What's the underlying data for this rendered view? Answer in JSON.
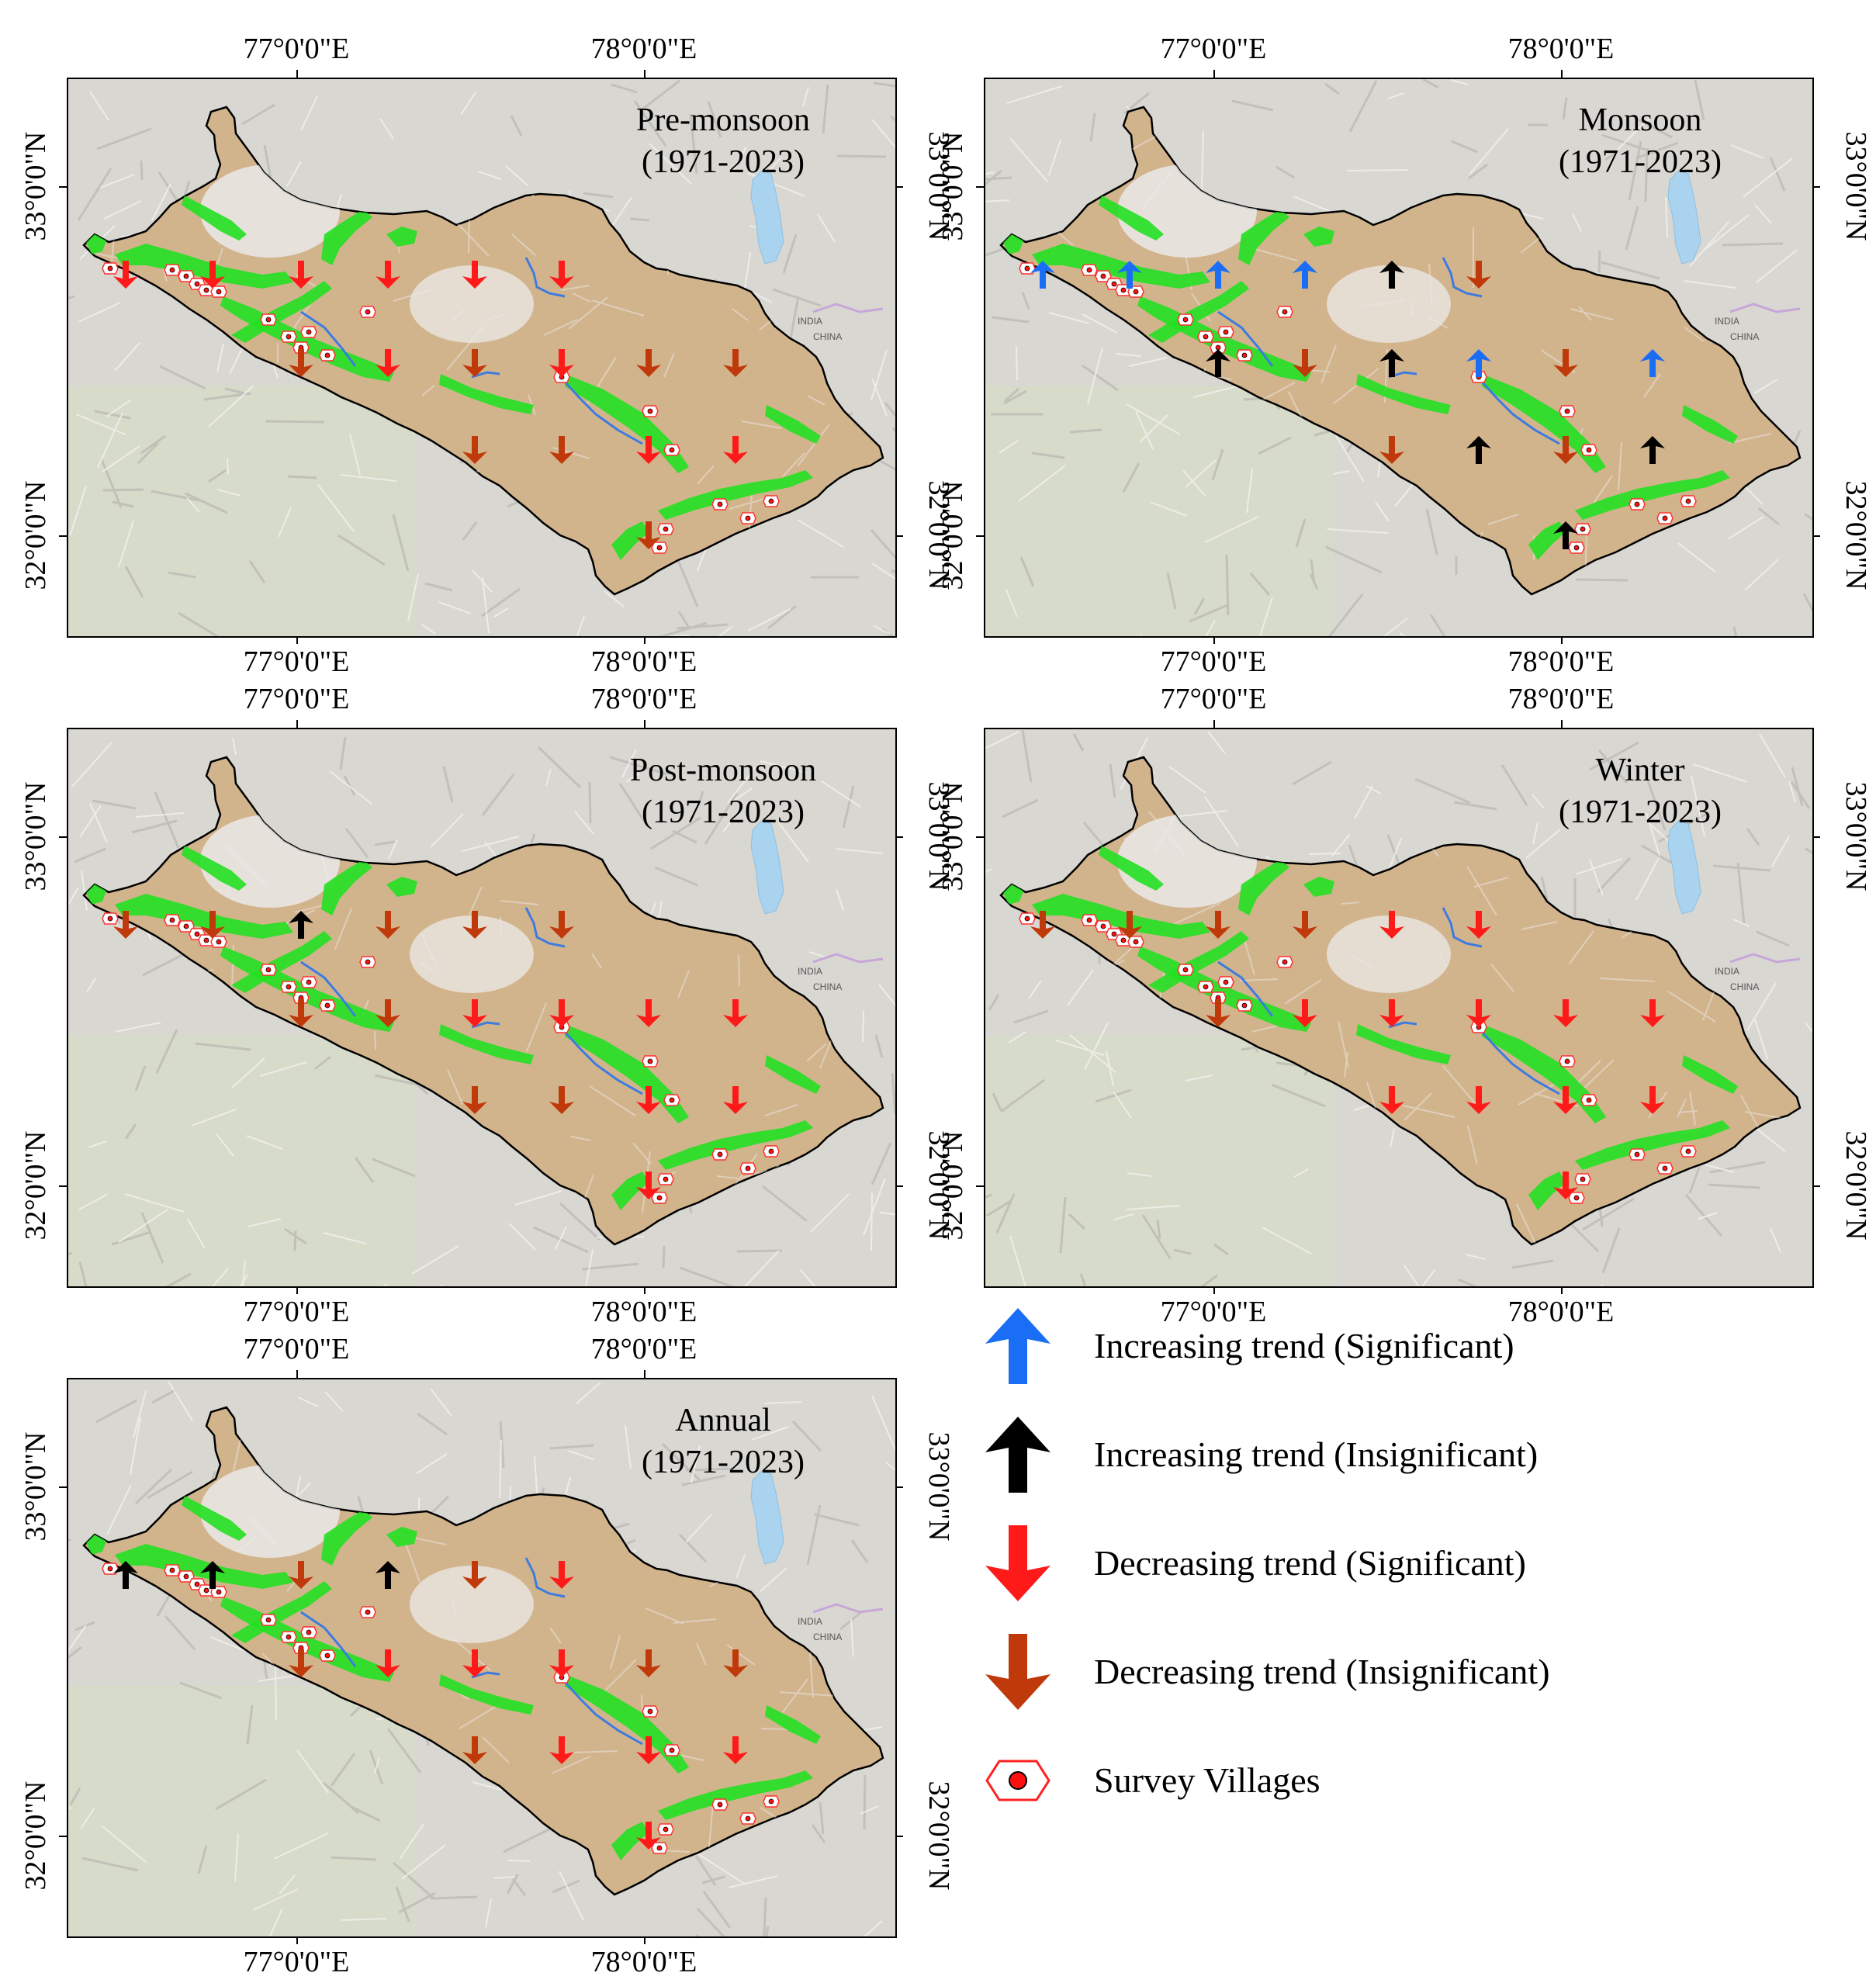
{
  "panels": [
    {
      "title": "Pre-monsoon",
      "period": "(1971-2023)",
      "lon_labels": [
        "77°0'0\"E",
        "78°0'0\"E"
      ],
      "lat_labels": [
        "33°0'0\"N",
        "32°0'0\"N"
      ],
      "trends": [
        "dec_sig",
        "dec_sig",
        "dec_sig",
        "dec_sig",
        "dec_sig",
        "dec_sig",
        "dec_ins",
        "dec_sig",
        "dec_ins",
        "dec_sig",
        "dec_ins",
        "dec_ins",
        "dec_ins",
        "dec_ins",
        "dec_sig",
        "dec_sig",
        "dec_ins"
      ]
    },
    {
      "title": "Monsoon",
      "period": "(1971-2023)",
      "lon_labels": [
        "77°0'0\"E",
        "78°0'0\"E"
      ],
      "lat_labels": [
        "33°0'0\"N",
        "32°0'0\"N"
      ],
      "trends": [
        "inc_sig",
        "inc_sig",
        "inc_sig",
        "inc_sig",
        "inc_ins",
        "dec_ins",
        "inc_ins",
        "dec_ins",
        "inc_ins",
        "inc_sig",
        "dec_ins",
        "inc_sig",
        "dec_ins",
        "inc_ins",
        "dec_ins",
        "inc_ins",
        "inc_ins"
      ]
    },
    {
      "title": "Post-monsoon",
      "period": "(1971-2023)",
      "lon_labels": [
        "77°0'0\"E",
        "78°0'0\"E"
      ],
      "lat_labels": [
        "33°0'0\"N",
        "32°0'0\"N"
      ],
      "trends": [
        "dec_ins",
        "dec_ins",
        "inc_ins",
        "dec_ins",
        "dec_ins",
        "dec_ins",
        "dec_ins",
        "dec_ins",
        "dec_sig",
        "dec_sig",
        "dec_sig",
        "dec_sig",
        "dec_ins",
        "dec_ins",
        "dec_sig",
        "dec_sig",
        "dec_sig"
      ]
    },
    {
      "title": "Winter",
      "period": "(1971-2023)",
      "lon_labels": [
        "77°0'0\"E",
        "78°0'0\"E"
      ],
      "lat_labels": [
        "33°0'0\"N",
        "32°0'0\"N"
      ],
      "trends": [
        "dec_ins",
        "dec_ins",
        "dec_ins",
        "dec_ins",
        "dec_sig",
        "dec_sig",
        "dec_ins",
        "dec_sig",
        "dec_sig",
        "dec_sig",
        "dec_sig",
        "dec_sig",
        "dec_sig",
        "dec_sig",
        "dec_sig",
        "dec_sig",
        "dec_sig"
      ]
    },
    {
      "title": "Annual",
      "period": "(1971-2023)",
      "lon_labels": [
        "77°0'0\"E",
        "78°0'0\"E"
      ],
      "lat_labels": [
        "33°0'0\"N",
        "32°0'0\"N"
      ],
      "trends": [
        "inc_ins",
        "inc_ins",
        "dec_ins",
        "inc_ins",
        "dec_ins",
        "dec_sig",
        "dec_ins",
        "dec_sig",
        "dec_sig",
        "dec_sig",
        "dec_ins",
        "dec_ins",
        "dec_ins",
        "dec_sig",
        "dec_sig",
        "dec_sig",
        "dec_sig"
      ]
    }
  ],
  "basemap_labels": {
    "india": "INDIA",
    "china": "CHINA"
  },
  "legend": [
    {
      "key": "inc_sig",
      "label": "Increasing trend (Significant)",
      "color": "#1a6ef5"
    },
    {
      "key": "inc_ins",
      "label": "Increasing trend (Insignificant)",
      "color": "#000000"
    },
    {
      "key": "dec_sig",
      "label": "Decreasing trend (Significant)",
      "color": "#ff1a1a"
    },
    {
      "key": "dec_ins",
      "label": "Decreasing trend (Insignificant)",
      "color": "#c0390b"
    },
    {
      "key": "village",
      "label": "Survey Villages",
      "color": "#ff2020"
    }
  ],
  "colors": {
    "inc_sig": "#1a6ef5",
    "inc_ins": "#000000",
    "dec_sig": "#ff1a1a",
    "dec_ins": "#c0390b",
    "region": "#d2b48c",
    "vegetation": "#22e022",
    "water": "#3d7be0"
  }
}
